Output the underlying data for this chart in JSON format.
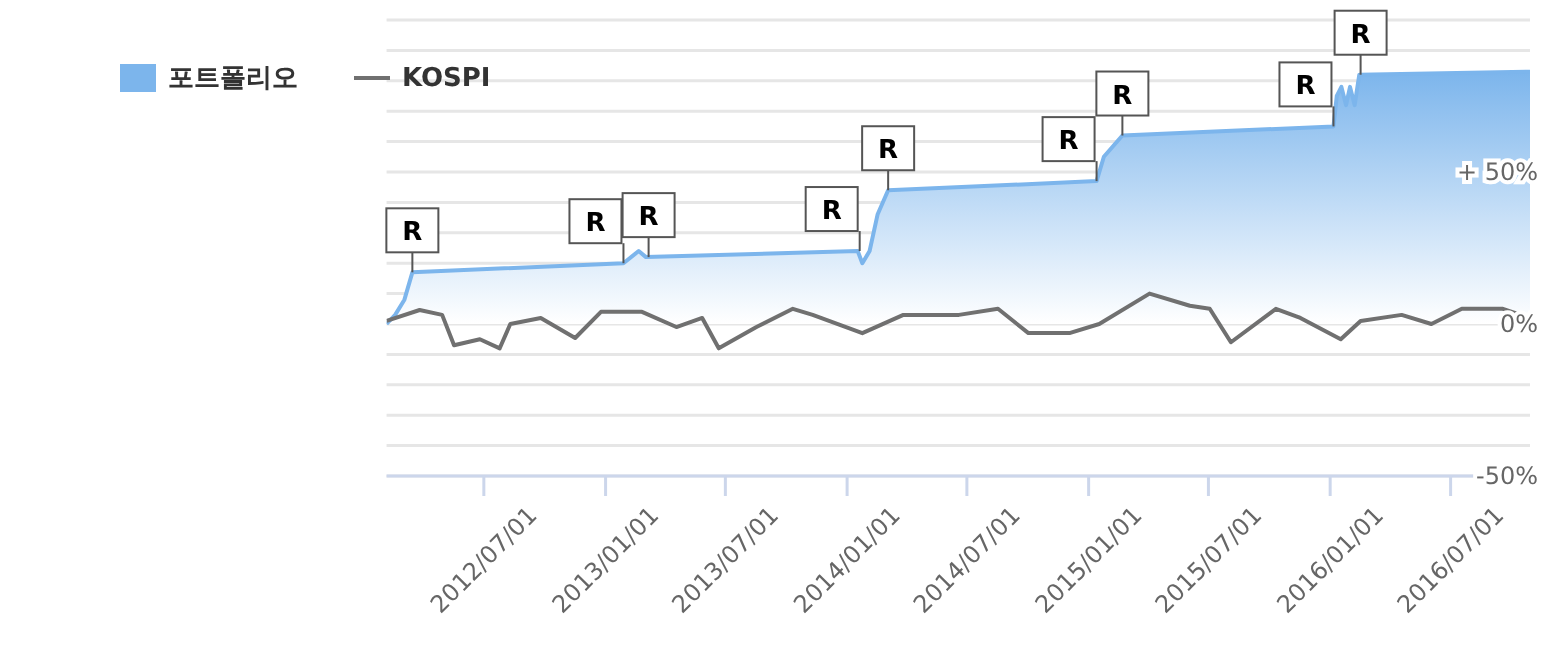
{
  "chart_data": {
    "type": "area",
    "legend": "top left",
    "grid": "y",
    "xlim": [
      "2012-02-05",
      "2016-10-29"
    ],
    "xticks": [
      {
        "value": "2012-07-01",
        "label": "2012/07/01"
      },
      {
        "value": "2013-01-01",
        "label": "2013/01/01"
      },
      {
        "value": "2013-07-01",
        "label": "2013/07/01"
      },
      {
        "value": "2014-01-01",
        "label": "2014/01/01"
      },
      {
        "value": "2014-07-01",
        "label": "2014/07/01"
      },
      {
        "value": "2015-01-01",
        "label": "2015/01/01"
      },
      {
        "value": "2015-07-01",
        "label": "2015/07/01"
      },
      {
        "value": "2016-01-01",
        "label": "2016/01/01"
      },
      {
        "value": "2016-07-01",
        "label": "2016/07/01"
      }
    ],
    "ylim": [
      -50,
      100
    ],
    "yticks": [
      {
        "value": -50,
        "label": "-50%"
      },
      {
        "value": -40,
        "label": null
      },
      {
        "value": -30,
        "label": null
      },
      {
        "value": -20,
        "label": null
      },
      {
        "value": -10,
        "label": null
      },
      {
        "value": 0,
        "label": "0%"
      },
      {
        "value": 10,
        "label": null
      },
      {
        "value": 20,
        "label": null
      },
      {
        "value": 30,
        "label": null
      },
      {
        "value": 40,
        "label": null
      },
      {
        "value": 50,
        "label": "+ 50%"
      },
      {
        "value": 60,
        "label": null
      },
      {
        "value": 70,
        "label": null
      },
      {
        "value": 80,
        "label": null
      },
      {
        "value": 90,
        "label": null
      },
      {
        "value": 100,
        "label": null
      }
    ],
    "series": [
      {
        "name": "포트폴리오",
        "color": "#7cb5ec",
        "x": [
          "2012-02-05",
          "2012-02-18",
          "2012-03-03",
          "2012-03-15",
          "2013-01-28",
          "2013-02-20",
          "2013-03-03",
          "2014-01-17",
          "2014-01-24",
          "2014-02-04",
          "2014-02-16",
          "2014-03-04",
          "2015-01-13",
          "2015-01-24",
          "2015-02-21",
          "2016-01-06",
          "2016-01-11",
          "2016-01-18",
          "2016-01-25",
          "2016-01-31",
          "2016-02-07",
          "2016-02-14",
          "2016-10-29"
        ],
        "values": [
          0,
          3,
          8,
          17,
          20,
          24,
          22,
          24,
          20,
          24,
          36,
          44,
          47,
          55,
          62,
          65,
          75,
          78,
          72,
          78,
          72,
          82,
          83
        ]
      },
      {
        "name": "KOSPI",
        "type": "line",
        "color": "#707070",
        "x": [
          "2012-02-05",
          "2012-03-26",
          "2012-04-29",
          "2012-05-17",
          "2012-06-25",
          "2012-07-25",
          "2012-08-10",
          "2012-09-25",
          "2012-11-16",
          "2012-12-25",
          "2013-02-25",
          "2013-04-18",
          "2013-05-27",
          "2013-06-21",
          "2013-08-17",
          "2013-10-11",
          "2013-11-10",
          "2014-01-24",
          "2014-03-27",
          "2014-06-19",
          "2014-08-17",
          "2014-10-02",
          "2014-12-03",
          "2015-01-17",
          "2015-04-03",
          "2015-06-03",
          "2015-07-03",
          "2015-08-04",
          "2015-10-11",
          "2015-11-17",
          "2016-01-17",
          "2016-02-16",
          "2016-04-18",
          "2016-06-02",
          "2016-07-18",
          "2016-09-18",
          "2016-10-29"
        ],
        "values": [
          1,
          4.6,
          3,
          -7,
          -5,
          -8,
          0,
          2,
          -4.6,
          4,
          4,
          -1,
          2,
          -8,
          -1,
          5,
          3,
          -3,
          3,
          3,
          5,
          -3,
          -3,
          0,
          10,
          6,
          5,
          -6,
          5,
          2,
          -5,
          1,
          3,
          0,
          5,
          5,
          2
        ]
      }
    ],
    "annotations": [
      {
        "text": "R",
        "x": "2012-03-15",
        "y": 17
      },
      {
        "text": "R",
        "x": "2013-01-28",
        "y": 20
      },
      {
        "text": "R",
        "x": "2013-03-07",
        "y": 22
      },
      {
        "text": "R",
        "x": "2014-01-20",
        "y": 24
      },
      {
        "text": "R",
        "x": "2014-03-04",
        "y": 44
      },
      {
        "text": "R",
        "x": "2015-01-13",
        "y": 47
      },
      {
        "text": "R",
        "x": "2015-02-21",
        "y": 62
      },
      {
        "text": "R",
        "x": "2016-01-06",
        "y": 65
      },
      {
        "text": "R",
        "x": "2016-02-16",
        "y": 82
      }
    ]
  }
}
